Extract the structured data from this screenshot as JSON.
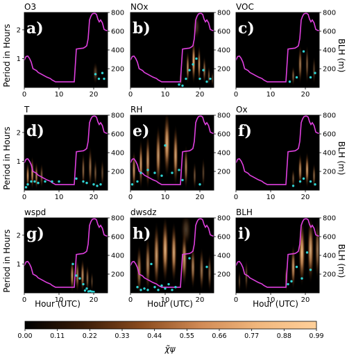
{
  "labels": {
    "ylabel_left": "Period in Hours",
    "ylabel_right": "BLH (m)",
    "xlabel": "Hour (UTC)",
    "colorbar_label": "χ̃ψ"
  },
  "colors": {
    "blh_line": "#e040e0",
    "cyan_points": "#2fd4d4",
    "background": "#000000",
    "colormap": [
      "#000000",
      "#3a1d08",
      "#8a4b1e",
      "#d08a55",
      "#f1b77d",
      "#ffd09a"
    ]
  },
  "colorbar": {
    "ticks": [
      "0.00",
      "0.11",
      "0.22",
      "0.33",
      "0.44",
      "0.55",
      "0.66",
      "0.77",
      "0.88",
      "0.99"
    ],
    "range": [
      0,
      0.99
    ]
  },
  "chart_data": {
    "type": "heatmap",
    "description_axes": {
      "x_ticks": [
        0,
        10,
        20
      ],
      "x_range": [
        0,
        24
      ],
      "y_left_ticks": [
        1,
        2
      ],
      "y_left_range": [
        0,
        2.6
      ],
      "y_right_ticks": [
        200,
        400,
        600,
        800
      ],
      "y_right_range": [
        0,
        800
      ]
    },
    "blh_series": {
      "hours": [
        0,
        0.5,
        1.0,
        1.5,
        2.0,
        2.5,
        3.5,
        4.0,
        5.0,
        6.0,
        6.5,
        7.5,
        8.0,
        9.0,
        10.0,
        11.0,
        12.0,
        13.0,
        14.0,
        14.4,
        15.0,
        16.0,
        17.0,
        17.5,
        18.0,
        18.4,
        18.8,
        19.2,
        19.6,
        20.0,
        20.4,
        20.8,
        21.2,
        21.6,
        22.0,
        22.5,
        23.0,
        23.5,
        24.0
      ],
      "values": [
        290,
        330,
        335,
        310,
        270,
        200,
        180,
        160,
        140,
        120,
        110,
        95,
        80,
        60,
        60,
        60,
        60,
        60,
        60,
        60,
        410,
        415,
        420,
        430,
        445,
        520,
        720,
        760,
        785,
        790,
        790,
        780,
        730,
        700,
        720,
        690,
        620,
        610,
        605
      ]
    },
    "panels": [
      {
        "name": "O3",
        "letter": "a)",
        "blobs": [
          [
            20.5,
            0.5,
            0.8,
            0.4,
            0.35
          ]
        ],
        "points": [
          [
            20.5,
            0.46
          ],
          [
            21.5,
            0.3
          ],
          [
            22.5,
            0.5
          ],
          [
            23.0,
            0.3
          ]
        ]
      },
      {
        "name": "NOx",
        "letter": "b)",
        "blobs": [
          [
            14.5,
            0.3,
            0.4,
            0.3,
            0.5
          ],
          [
            16.5,
            0.7,
            0.5,
            0.6,
            0.8
          ],
          [
            18.2,
            0.9,
            0.6,
            0.8,
            0.95
          ],
          [
            19.8,
            0.8,
            0.5,
            0.7,
            0.8
          ],
          [
            21.3,
            0.6,
            0.5,
            0.5,
            0.6
          ],
          [
            22.6,
            0.4,
            0.4,
            0.35,
            0.5
          ],
          [
            23.6,
            0.3,
            0.3,
            0.3,
            0.4
          ],
          [
            19,
            2.1,
            1.2,
            0.45,
            0.25
          ]
        ],
        "points": [
          [
            14,
            0.1
          ],
          [
            15,
            0.06
          ],
          [
            16,
            0.3
          ],
          [
            17,
            0.6
          ],
          [
            18,
            0.8
          ],
          [
            19,
            1.0
          ],
          [
            20,
            0.3
          ],
          [
            21,
            0.6
          ],
          [
            22,
            0.2
          ],
          [
            23,
            0.3
          ]
        ]
      },
      {
        "name": "VOC",
        "letter": "c)",
        "blobs": [
          [
            16.5,
            0.4,
            0.5,
            0.35,
            0.5
          ],
          [
            18.5,
            0.8,
            0.6,
            0.7,
            0.65
          ],
          [
            20.5,
            0.8,
            0.5,
            0.7,
            0.5
          ],
          [
            22.5,
            0.6,
            0.5,
            0.5,
            0.35
          ]
        ],
        "points": [
          [
            15.5,
            0.2
          ],
          [
            17.5,
            0.35
          ],
          [
            19.5,
            1.25
          ],
          [
            21.5,
            0.35
          ],
          [
            22.8,
            0.5
          ]
        ]
      },
      {
        "name": "T",
        "letter": "d)",
        "blobs": [
          [
            1.0,
            0.5,
            0.5,
            0.5,
            0.8
          ],
          [
            2.3,
            0.6,
            0.5,
            0.6,
            0.85
          ],
          [
            3.5,
            0.5,
            0.5,
            0.5,
            0.7
          ],
          [
            5,
            0.5,
            0.5,
            0.45,
            0.5
          ],
          [
            17,
            0.7,
            0.5,
            0.65,
            0.55
          ],
          [
            19,
            0.8,
            0.6,
            0.75,
            0.6
          ],
          [
            20.5,
            0.6,
            0.5,
            0.5,
            0.45
          ],
          [
            22.5,
            0.6,
            0.5,
            0.5,
            0.4
          ]
        ],
        "points": [
          [
            0.5,
            0.1
          ],
          [
            1,
            0.2
          ],
          [
            2,
            0.3
          ],
          [
            3,
            0.3
          ],
          [
            4,
            0.25
          ],
          [
            6,
            0.3
          ],
          [
            8,
            0.3
          ],
          [
            10,
            0.3
          ],
          [
            15,
            0.4
          ],
          [
            17,
            0.3
          ],
          [
            18,
            0.25
          ],
          [
            20,
            0.2
          ],
          [
            21,
            0.15
          ],
          [
            22,
            0.2
          ]
        ]
      },
      {
        "name": "RH",
        "letter": "e)",
        "blobs": [
          [
            1,
            0.7,
            0.6,
            0.7,
            0.8
          ],
          [
            3,
            0.9,
            0.6,
            0.9,
            0.85
          ],
          [
            5,
            1.0,
            0.7,
            1.0,
            0.8
          ],
          [
            8,
            1.2,
            0.8,
            1.1,
            0.8
          ],
          [
            10.5,
            1.6,
            1.0,
            1.2,
            0.9
          ],
          [
            13,
            1.2,
            0.8,
            1.1,
            0.85
          ],
          [
            16,
            0.8,
            0.6,
            0.8,
            0.7
          ],
          [
            18.5,
            0.5,
            0.5,
            0.5,
            0.45
          ],
          [
            21,
            0.6,
            0.5,
            0.55,
            0.35
          ]
        ],
        "points": [
          [
            0.5,
            0.2
          ],
          [
            2,
            0.3
          ],
          [
            3,
            0.6
          ],
          [
            5,
            0.7
          ],
          [
            7,
            0.6
          ],
          [
            9,
            0.5
          ],
          [
            10,
            1.55
          ],
          [
            12,
            0.6
          ],
          [
            14,
            0.7
          ],
          [
            15,
            0.35
          ],
          [
            20,
            0.2
          ]
        ]
      },
      {
        "name": "Ox",
        "letter": "f)",
        "blobs": [
          [
            16.5,
            0.4,
            0.5,
            0.35,
            0.45
          ],
          [
            18.5,
            0.7,
            0.6,
            0.6,
            0.75
          ],
          [
            20.5,
            0.7,
            0.6,
            0.65,
            0.85
          ],
          [
            22.5,
            0.5,
            0.5,
            0.45,
            0.55
          ]
        ],
        "points": [
          [
            16.5,
            0.15
          ],
          [
            18.5,
            0.3
          ],
          [
            19.5,
            0.4
          ],
          [
            21.5,
            0.3
          ],
          [
            22.8,
            0.2
          ]
        ]
      },
      {
        "name": "wspd",
        "letter": "g)",
        "blobs": [
          [
            13.8,
            0.6,
            0.6,
            0.6,
            0.8
          ],
          [
            15.3,
            0.6,
            0.6,
            0.6,
            0.7
          ],
          [
            16.8,
            0.6,
            0.6,
            0.6,
            0.75
          ],
          [
            18.2,
            0.5,
            0.5,
            0.5,
            0.55
          ],
          [
            19.5,
            0.4,
            0.4,
            0.35,
            0.35
          ]
        ],
        "points": [
          [
            14,
            1.0
          ],
          [
            15,
            0.6
          ],
          [
            16,
            0.5
          ],
          [
            17,
            0.3
          ],
          [
            17.5,
            0.08
          ],
          [
            18,
            0.15
          ],
          [
            18.5,
            0.05
          ],
          [
            19,
            0.06
          ],
          [
            19.5,
            0.04
          ],
          [
            20,
            0.03
          ]
        ]
      },
      {
        "name": "dwsdz",
        "letter": "h)",
        "blobs": [
          [
            2.5,
            0.8,
            0.8,
            0.9,
            0.7
          ],
          [
            5,
            1.0,
            0.8,
            1.0,
            0.7
          ],
          [
            7.5,
            1.3,
            0.9,
            1.2,
            0.8
          ],
          [
            10,
            1.5,
            1.0,
            1.2,
            0.9
          ],
          [
            12.5,
            1.4,
            0.9,
            1.1,
            0.85
          ],
          [
            15.5,
            1.2,
            0.9,
            1.0,
            0.8
          ],
          [
            18,
            0.9,
            0.7,
            0.8,
            0.7
          ],
          [
            20.5,
            0.8,
            0.7,
            0.8,
            0.6
          ],
          [
            22.8,
            0.7,
            0.6,
            0.7,
            0.5
          ],
          [
            16,
            2.2,
            1.6,
            0.6,
            0.3
          ]
        ],
        "points": [
          [
            2,
            0.2
          ],
          [
            3,
            0.1
          ],
          [
            4,
            0.15
          ],
          [
            5,
            0.1
          ],
          [
            6,
            1.0
          ],
          [
            7,
            0.2
          ],
          [
            8,
            0.1
          ],
          [
            9,
            0.25
          ],
          [
            10,
            0.15
          ],
          [
            11,
            0.3
          ],
          [
            12,
            0.1
          ],
          [
            13,
            0.2
          ],
          [
            17,
            1.2
          ],
          [
            22,
            0.9
          ]
        ]
      },
      {
        "name": "BLH",
        "letter": "i)",
        "blobs": [
          [
            14.5,
            0.5,
            0.5,
            0.5,
            0.5
          ],
          [
            16.5,
            0.9,
            0.7,
            0.8,
            0.8
          ],
          [
            19,
            1.4,
            1.0,
            1.2,
            0.95
          ],
          [
            21.5,
            1.5,
            1.0,
            1.2,
            0.85
          ],
          [
            23.5,
            1.5,
            0.8,
            1.1,
            0.6
          ],
          [
            3,
            0.6,
            0.5,
            0.6,
            0.4
          ],
          [
            1,
            0.4,
            0.4,
            0.4,
            0.35
          ]
        ],
        "points": [
          [
            15,
            0.3
          ],
          [
            16,
            0.4
          ],
          [
            17.5,
            0.9
          ],
          [
            19,
            0.5
          ],
          [
            20.5,
            1.4
          ],
          [
            21.5,
            0.8
          ]
        ]
      }
    ]
  }
}
